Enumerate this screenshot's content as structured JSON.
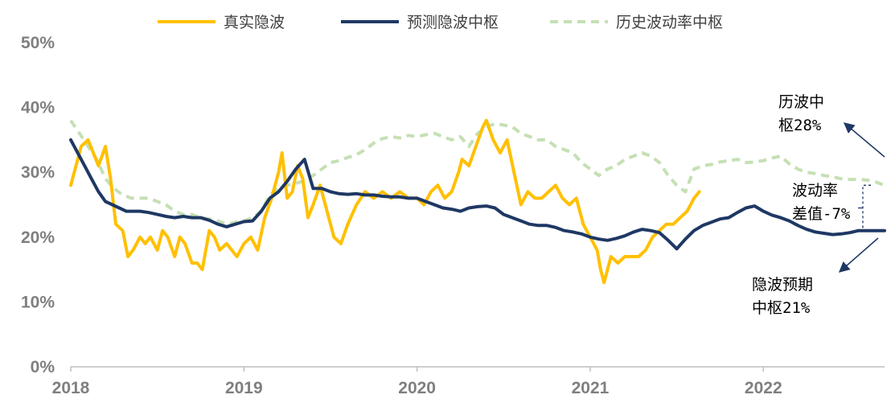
{
  "chart_data": {
    "type": "line",
    "title": "",
    "xlabel": "",
    "ylabel": "",
    "x_range": [
      2018.0,
      2022.7
    ],
    "ylim": [
      0,
      50
    ],
    "y_ticks": [
      {
        "value": 0,
        "label": "0%"
      },
      {
        "value": 10,
        "label": "10%"
      },
      {
        "value": 20,
        "label": "20%"
      },
      {
        "value": 30,
        "label": "30%"
      },
      {
        "value": 40,
        "label": "40%"
      },
      {
        "value": 50,
        "label": "50%"
      }
    ],
    "x_ticks": [
      {
        "value": 2018,
        "label": "2018"
      },
      {
        "value": 2019,
        "label": "2019"
      },
      {
        "value": 2020,
        "label": "2020"
      },
      {
        "value": 2021,
        "label": "2021"
      },
      {
        "value": 2022,
        "label": "2022"
      }
    ],
    "legend_position": "top-center",
    "series": [
      {
        "name": "真实隐波",
        "color": "#FFC000",
        "style": "solid",
        "x": [
          2018.0,
          2018.03,
          2018.06,
          2018.1,
          2018.13,
          2018.16,
          2018.2,
          2018.23,
          2018.26,
          2018.3,
          2018.33,
          2018.36,
          2018.4,
          2018.43,
          2018.46,
          2018.5,
          2018.53,
          2018.56,
          2018.6,
          2018.63,
          2018.66,
          2018.7,
          2018.73,
          2018.76,
          2018.8,
          2018.83,
          2018.86,
          2018.9,
          2018.93,
          2018.96,
          2019.0,
          2019.04,
          2019.08,
          2019.12,
          2019.16,
          2019.2,
          2019.22,
          2019.25,
          2019.28,
          2019.31,
          2019.34,
          2019.37,
          2019.4,
          2019.44,
          2019.48,
          2019.52,
          2019.56,
          2019.6,
          2019.65,
          2019.7,
          2019.75,
          2019.8,
          2019.85,
          2019.9,
          2019.95,
          2020.0,
          2020.04,
          2020.08,
          2020.12,
          2020.16,
          2020.2,
          2020.24,
          2020.26,
          2020.3,
          2020.34,
          2020.38,
          2020.4,
          2020.44,
          2020.48,
          2020.52,
          2020.56,
          2020.6,
          2020.64,
          2020.68,
          2020.72,
          2020.76,
          2020.8,
          2020.84,
          2020.88,
          2020.92,
          2020.96,
          2021.0,
          2021.04,
          2021.06,
          2021.08,
          2021.12,
          2021.16,
          2021.2,
          2021.24,
          2021.28,
          2021.32,
          2021.36,
          2021.4,
          2021.44,
          2021.48,
          2021.52,
          2021.56,
          2021.6,
          2021.63
        ],
        "values": [
          28,
          31,
          34,
          35,
          33,
          31,
          34,
          29,
          22,
          21,
          17,
          18,
          20,
          19,
          20,
          18,
          21,
          20,
          17,
          20,
          19,
          16,
          16,
          15,
          21,
          20,
          18,
          19,
          18,
          17,
          19,
          20,
          18,
          23,
          26,
          30,
          33,
          26,
          27,
          31,
          29,
          23,
          25,
          28,
          24,
          20,
          19,
          22,
          25,
          27,
          26,
          27,
          26,
          27,
          26,
          26,
          25,
          27,
          28,
          26,
          27,
          30,
          32,
          31,
          34,
          37,
          38,
          35,
          33,
          35,
          30,
          25,
          27,
          26,
          26,
          27,
          28,
          26,
          25,
          26,
          22,
          20,
          18,
          15,
          13,
          17,
          16,
          17,
          17,
          17,
          18,
          20,
          21,
          22,
          22,
          23,
          24,
          26,
          27
        ]
      },
      {
        "name": "预测隐波中枢",
        "color": "#1F3864",
        "style": "solid",
        "x": [
          2018.0,
          2018.04,
          2018.08,
          2018.12,
          2018.16,
          2018.2,
          2018.24,
          2018.28,
          2018.32,
          2018.36,
          2018.4,
          2018.45,
          2018.5,
          2018.55,
          2018.6,
          2018.65,
          2018.7,
          2018.75,
          2018.8,
          2018.85,
          2018.9,
          2018.95,
          2019.0,
          2019.05,
          2019.1,
          2019.15,
          2019.2,
          2019.25,
          2019.3,
          2019.35,
          2019.4,
          2019.45,
          2019.5,
          2019.55,
          2019.6,
          2019.65,
          2019.7,
          2019.75,
          2019.8,
          2019.85,
          2019.9,
          2019.95,
          2020.0,
          2020.05,
          2020.1,
          2020.15,
          2020.2,
          2020.25,
          2020.3,
          2020.35,
          2020.4,
          2020.45,
          2020.5,
          2020.55,
          2020.6,
          2020.65,
          2020.7,
          2020.75,
          2020.8,
          2020.85,
          2020.9,
          2020.95,
          2021.0,
          2021.05,
          2021.1,
          2021.15,
          2021.2,
          2021.25,
          2021.3,
          2021.35,
          2021.4,
          2021.45,
          2021.5,
          2021.55,
          2021.6,
          2021.65,
          2021.7,
          2021.75,
          2021.8,
          2021.85,
          2021.9,
          2021.95,
          2022.0,
          2022.05,
          2022.1,
          2022.15,
          2022.2,
          2022.25,
          2022.3,
          2022.35,
          2022.4,
          2022.45,
          2022.5,
          2022.55,
          2022.6,
          2022.65,
          2022.7
        ],
        "values": [
          35,
          33,
          31,
          29,
          27,
          25.5,
          25,
          24.5,
          24,
          24,
          24,
          23.8,
          23.5,
          23.2,
          23,
          23.2,
          23,
          23,
          22.6,
          22,
          21.6,
          22,
          22.4,
          22.5,
          24,
          26,
          27,
          28.6,
          30.5,
          32,
          27.5,
          27.5,
          27,
          26.7,
          26.6,
          26.7,
          26.5,
          26.5,
          26.3,
          26.2,
          26.2,
          26,
          26,
          25.5,
          25,
          24.5,
          24.3,
          24,
          24.5,
          24.7,
          24.8,
          24.5,
          23.5,
          23,
          22.5,
          22,
          21.8,
          21.8,
          21.5,
          21,
          20.8,
          20.5,
          20,
          19.7,
          19.5,
          19.8,
          20.2,
          20.8,
          21.2,
          21,
          20.7,
          19.5,
          18.2,
          19.7,
          21,
          21.8,
          22.3,
          22.8,
          23,
          23.8,
          24.5,
          24.8,
          24,
          23.4,
          23,
          22.5,
          21.8,
          21.2,
          20.8,
          20.6,
          20.4,
          20.5,
          20.7,
          21,
          21,
          21,
          21
        ]
      },
      {
        "name": "历史波动率中枢",
        "color": "#C5E0B4",
        "style": "dashed",
        "x": [
          2018.0,
          2018.05,
          2018.1,
          2018.15,
          2018.2,
          2018.25,
          2018.3,
          2018.35,
          2018.4,
          2018.45,
          2018.5,
          2018.55,
          2018.6,
          2018.65,
          2018.7,
          2018.75,
          2018.8,
          2018.85,
          2018.9,
          2018.95,
          2019.0,
          2019.05,
          2019.1,
          2019.15,
          2019.2,
          2019.25,
          2019.3,
          2019.35,
          2019.4,
          2019.45,
          2019.5,
          2019.55,
          2019.6,
          2019.65,
          2019.7,
          2019.75,
          2019.8,
          2019.85,
          2019.9,
          2019.95,
          2020.0,
          2020.05,
          2020.1,
          2020.15,
          2020.2,
          2020.25,
          2020.3,
          2020.35,
          2020.4,
          2020.45,
          2020.5,
          2020.55,
          2020.6,
          2020.65,
          2020.7,
          2020.75,
          2020.8,
          2020.85,
          2020.9,
          2020.95,
          2021.0,
          2021.05,
          2021.1,
          2021.15,
          2021.2,
          2021.25,
          2021.3,
          2021.35,
          2021.4,
          2021.45,
          2021.5,
          2021.55,
          2021.6,
          2021.65,
          2021.7,
          2021.75,
          2021.8,
          2021.85,
          2021.9,
          2021.95,
          2022.0,
          2022.05,
          2022.1,
          2022.15,
          2022.2,
          2022.25,
          2022.3,
          2022.35,
          2022.4,
          2022.45,
          2022.5,
          2022.55,
          2022.6,
          2022.65,
          2022.7
        ],
        "values": [
          38,
          36,
          34,
          32,
          29,
          27.5,
          26.5,
          26,
          26,
          26,
          25.5,
          25,
          24,
          23.5,
          23.5,
          23,
          22.8,
          22.5,
          22,
          22.3,
          22.5,
          23,
          24,
          26.5,
          27.5,
          28,
          28.3,
          28.7,
          29.5,
          30.5,
          31.5,
          31.8,
          32.3,
          32.7,
          33.5,
          34.5,
          35.2,
          35.5,
          35.3,
          35.7,
          35.5,
          35.8,
          36,
          35.5,
          35,
          35.5,
          34,
          36,
          37,
          37.5,
          37.3,
          37,
          36,
          35.5,
          35,
          35,
          34,
          33.5,
          33,
          31.5,
          30.5,
          29.5,
          30.5,
          31,
          32,
          32.5,
          33,
          32.5,
          31.5,
          29.5,
          28,
          27,
          30.5,
          31,
          31.2,
          31.6,
          31.8,
          32,
          31.5,
          31.6,
          31.8,
          32.2,
          32.5,
          31.3,
          30.5,
          30,
          29.8,
          29.5,
          29.3,
          29,
          28.9,
          28.9,
          28.8,
          28.5,
          28
        ]
      }
    ],
    "annotations": [
      {
        "id": "hist",
        "lines": [
          "历波中",
          "枢28%"
        ]
      },
      {
        "id": "spread",
        "lines": [
          "波动率",
          "差值-7%"
        ]
      },
      {
        "id": "pred",
        "lines": [
          "隐波预期",
          "中枢21%"
        ]
      }
    ]
  }
}
